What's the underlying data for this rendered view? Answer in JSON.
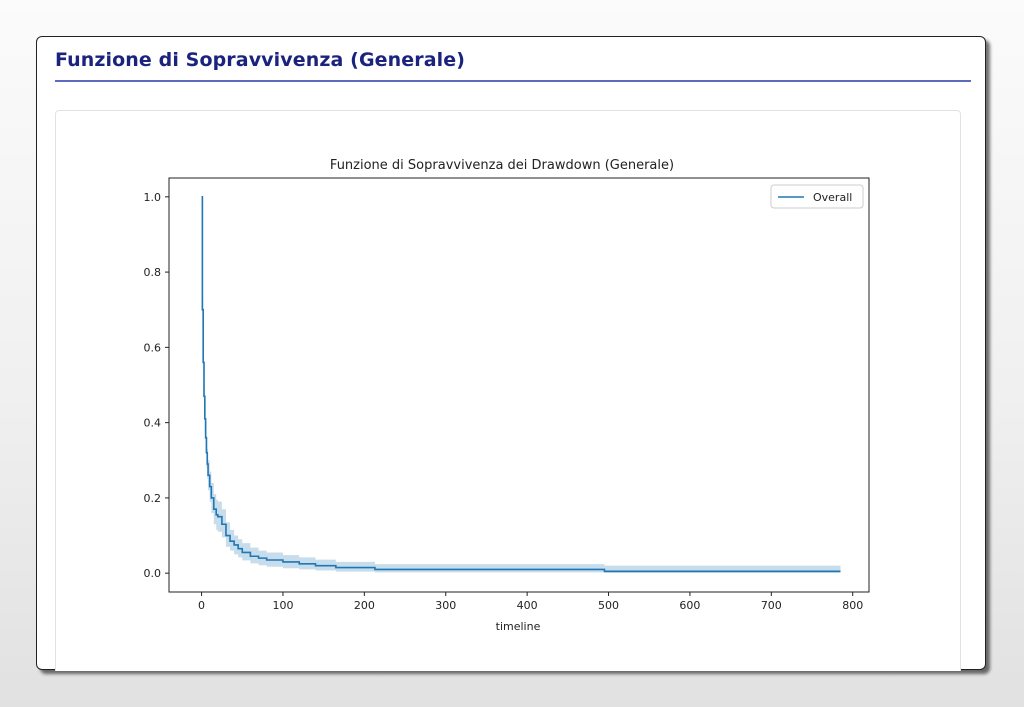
{
  "panel": {
    "title": "Funzione di Sopravvivenza (Generale)",
    "accent_color": "#1a237e",
    "rule_color": "#5c6bc0"
  },
  "chart_data": {
    "type": "line",
    "title": "Funzione di Sopravvivenza dei Drawdown (Generale)",
    "xlabel": "timeline",
    "ylabel": "",
    "xlim": [
      -40,
      820
    ],
    "ylim": [
      -0.05,
      1.05
    ],
    "xticks": [
      0,
      100,
      200,
      300,
      400,
      500,
      600,
      700,
      800
    ],
    "yticks": [
      0.0,
      0.2,
      0.4,
      0.6,
      0.8,
      1.0
    ],
    "xtick_labels": [
      "0",
      "100",
      "200",
      "300",
      "400",
      "500",
      "600",
      "700",
      "800"
    ],
    "ytick_labels": [
      "0.0",
      "0.2",
      "0.4",
      "0.6",
      "0.8",
      "1.0"
    ],
    "grid": false,
    "legend_position": "upper right",
    "series": [
      {
        "name": "Overall",
        "color": "#1f77b4",
        "step": true,
        "x": [
          0,
          1,
          2,
          3,
          4,
          5,
          6,
          7,
          8,
          10,
          12,
          15,
          18,
          20,
          25,
          30,
          35,
          40,
          45,
          50,
          60,
          70,
          80,
          100,
          120,
          140,
          165,
          213,
          495,
          785
        ],
        "y": [
          1.0,
          0.7,
          0.56,
          0.47,
          0.41,
          0.36,
          0.32,
          0.29,
          0.26,
          0.23,
          0.2,
          0.17,
          0.155,
          0.15,
          0.13,
          0.1,
          0.085,
          0.075,
          0.065,
          0.055,
          0.045,
          0.04,
          0.035,
          0.03,
          0.025,
          0.02,
          0.015,
          0.01,
          0.005,
          0.005
        ],
        "ci_lower": [
          1.0,
          0.67,
          0.52,
          0.43,
          0.37,
          0.32,
          0.28,
          0.25,
          0.22,
          0.19,
          0.16,
          0.13,
          0.115,
          0.11,
          0.095,
          0.07,
          0.06,
          0.05,
          0.042,
          0.034,
          0.026,
          0.021,
          0.017,
          0.013,
          0.01,
          0.007,
          0.004,
          0.002,
          0.0005,
          0.0005
        ],
        "ci_upper": [
          1.0,
          0.74,
          0.6,
          0.51,
          0.45,
          0.4,
          0.36,
          0.33,
          0.3,
          0.27,
          0.24,
          0.21,
          0.195,
          0.19,
          0.17,
          0.135,
          0.115,
          0.1,
          0.09,
          0.08,
          0.068,
          0.06,
          0.055,
          0.048,
          0.042,
          0.036,
          0.03,
          0.024,
          0.02,
          0.02
        ]
      }
    ]
  }
}
